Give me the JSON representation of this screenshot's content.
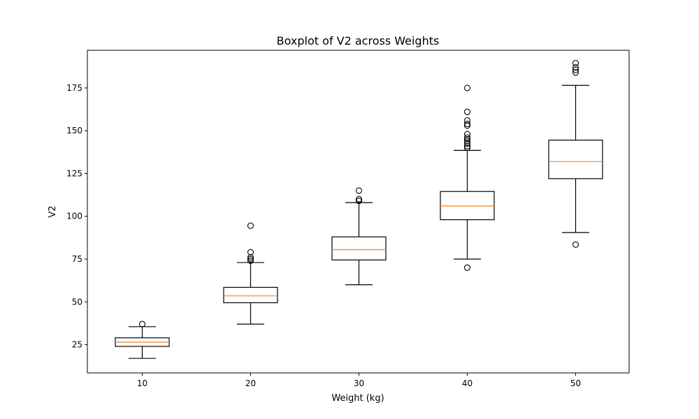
{
  "chart_data": {
    "type": "boxplot",
    "title": "Boxplot of V2 across Weights",
    "xlabel": "Weight (kg)",
    "ylabel": "V2",
    "categories": [
      "10",
      "20",
      "30",
      "40",
      "50"
    ],
    "ylim": [
      8.5,
      197.0
    ],
    "yticks": [
      25,
      50,
      75,
      100,
      125,
      150,
      175
    ],
    "grid": false,
    "colors": {
      "box": "#000000",
      "median": "#ff7f0e"
    },
    "boxes": [
      {
        "whisker_low": 17.0,
        "q1": 24.0,
        "median": 26.5,
        "q3": 29.0,
        "whisker_high": 35.5,
        "outliers": [
          37.0
        ]
      },
      {
        "whisker_low": 37.0,
        "q1": 49.5,
        "median": 53.5,
        "q3": 58.5,
        "whisker_high": 73.0,
        "outliers": [
          74.0,
          75.0,
          76.0,
          79.0,
          94.5
        ]
      },
      {
        "whisker_low": 60.0,
        "q1": 74.5,
        "median": 80.5,
        "q3": 88.0,
        "whisker_high": 108.0,
        "outliers": [
          109.0,
          110.0,
          115.0
        ]
      },
      {
        "whisker_low": 75.0,
        "q1": 98.0,
        "median": 106.0,
        "q3": 114.5,
        "whisker_high": 138.5,
        "outliers": [
          70.0,
          140.0,
          141.0,
          142.5,
          144.0,
          145.0,
          146.0,
          148.0,
          153.0,
          154.0,
          156.0,
          161.0,
          175.0
        ]
      },
      {
        "whisker_low": 90.5,
        "q1": 122.0,
        "median": 132.0,
        "q3": 144.5,
        "whisker_high": 176.5,
        "outliers": [
          83.5,
          184.0,
          185.5,
          187.0,
          189.5
        ]
      }
    ]
  }
}
